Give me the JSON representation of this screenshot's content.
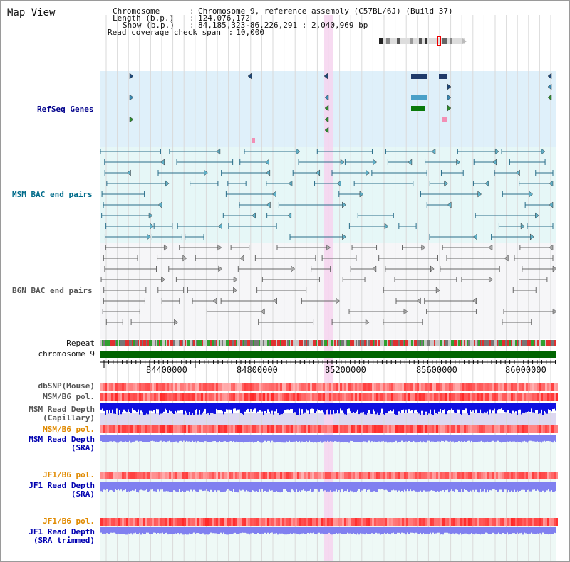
{
  "page_title": "Map View",
  "info": {
    "chromosome_key": "Chromosome",
    "chromosome_val": "Chromosome 9, reference assembly (C57BL/6J) (Build 37)",
    "length_key": "Length (b.p.)",
    "length_val": "124,076,172",
    "show_key": "Show (b.p.)",
    "show_val": "84,185,323-86,226,291 : 2,040,969 bp",
    "span_key": "Read coverage check span",
    "span_val": "10,000"
  },
  "tracks": {
    "refseq": "RefSeq Genes",
    "msm_bac": "MSM BAC end pairs",
    "b6n_bac": "B6N BAC end pairs",
    "repeat": "Repeat",
    "chromosome": "chromosome 9",
    "dbsnp": "dbSNP(Mouse)",
    "msm_b6_pol_1": "MSM/B6 pol.",
    "msm_depth_cap_1": "MSM Read Depth",
    "msm_depth_cap_2": "(Capillary)",
    "msm_b6_pol_2": "MSM/B6 pol.",
    "msm_depth_sra_1": "MSM Read Depth",
    "msm_depth_sra_2": "(SRA)",
    "jf1_b6_pol_1": "JF1/B6 pol.",
    "jf1_depth_sra_1": "JF1 Read Depth",
    "jf1_depth_sra_2": "(SRA)",
    "jf1_b6_pol_2": "JF1/B6 pol.",
    "jf1_depth_trim_1": "JF1 Read Depth",
    "jf1_depth_trim_2": "(SRA trimmed)"
  },
  "axis": {
    "ticks": [
      "84400000",
      "84800000",
      "85200000",
      "85600000",
      "86000000"
    ]
  },
  "colors": {
    "refseq_bg": "#dff0fa",
    "msm_bg": "#e6f7f7",
    "b6n_bg": "#f6f6f8",
    "lower_bg": "#eef9f6",
    "highlight": "#f6d4ee",
    "refseq_label": "#00008b",
    "msm_label": "#006b8a",
    "b6n_label": "#555555",
    "orange_label": "#e08a00",
    "blue_label": "#0000b0",
    "chrom_green": "#006400",
    "depth_blue": "#1010e0",
    "depth_light": "#8080f0"
  }
}
